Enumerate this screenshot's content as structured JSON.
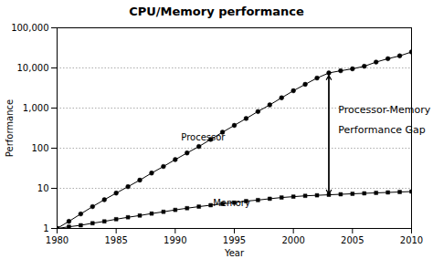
{
  "chart_data": {
    "type": "line",
    "title": "CPU/Memory performance",
    "x_label": "Year",
    "y_label": "Performance",
    "log": "y",
    "grid": "y",
    "xlim": [
      1980,
      2010
    ],
    "xticks": [
      1980,
      1985,
      1990,
      1995,
      2000,
      2005,
      2010
    ],
    "ylim": [
      1,
      100000
    ],
    "yticks": [
      1,
      10,
      100,
      {
        "value": 1000,
        "label": "1,000"
      },
      {
        "value": 10000,
        "label": "10,000"
      },
      {
        "value": 100000,
        "label": "100,000"
      }
    ],
    "x": [
      1980,
      1981,
      1982,
      1983,
      1984,
      1985,
      1986,
      1987,
      1988,
      1989,
      1990,
      1991,
      1992,
      1993,
      1994,
      1995,
      1996,
      1997,
      1998,
      1999,
      2000,
      2001,
      2002,
      2003,
      2004,
      2005,
      2006,
      2007,
      2008,
      2009,
      2010
    ],
    "series": [
      {
        "name": "Processor",
        "color": "#000000",
        "marker": "circle",
        "values": [
          1,
          1.5,
          2.3,
          3.5,
          5.2,
          7.6,
          11,
          16,
          24,
          35,
          52,
          76,
          110,
          165,
          250,
          370,
          550,
          820,
          1200,
          1800,
          2700,
          3900,
          5600,
          7500,
          8500,
          9500,
          11000,
          14000,
          17000,
          20000,
          25000
        ]
      },
      {
        "name": "Memory",
        "color": "#000000",
        "marker": "square",
        "values": [
          1,
          1.1,
          1.2,
          1.35,
          1.5,
          1.7,
          1.9,
          2.1,
          2.35,
          2.6,
          2.9,
          3.2,
          3.5,
          3.8,
          4.1,
          4.4,
          4.8,
          5.1,
          5.5,
          5.9,
          6.2,
          6.5,
          6.7,
          6.9,
          7.1,
          7.3,
          7.5,
          7.7,
          7.9,
          8.1,
          8.3
        ]
      }
    ],
    "annotations": [
      {
        "text": "Processor",
        "x": 1990.5,
        "y": 160
      },
      {
        "text": "Memory",
        "x": 1993.2,
        "y": 3.6
      },
      {
        "text": "Processor-Memory",
        "x": 2003.8,
        "y": 900
      },
      {
        "text": "Performance Gap",
        "x": 2003.8,
        "y": 280
      }
    ],
    "arrows": [
      {
        "x": 2003.0,
        "y1": 6500,
        "y2": 7.1
      }
    ]
  }
}
